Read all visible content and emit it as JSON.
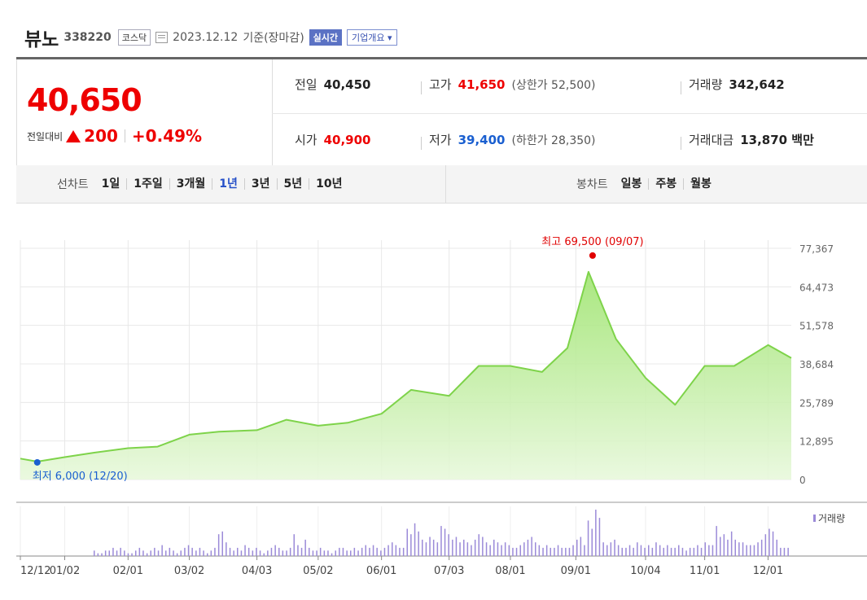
{
  "header": {
    "name": "뷰노",
    "code": "338220",
    "market": "코스닥",
    "date": "2023.12.12",
    "basis": "기준(장마감)",
    "realtime_button": "실시간",
    "overview_button": "기업개요 ▾"
  },
  "price": {
    "current": "40,650",
    "change_label": "전일대비",
    "change": "200",
    "change_pct": "+0.49%"
  },
  "stats": {
    "prev_label": "전일",
    "prev": "40,450",
    "high_label": "고가",
    "high": "41,650",
    "upper_limit": "(상한가 52,500)",
    "volume_label": "거래량",
    "volume": "342,642",
    "open_label": "시가",
    "open": "40,900",
    "low_label": "저가",
    "low": "39,400",
    "lower_limit": "(하한가 28,350)",
    "amount_label": "거래대금",
    "amount": "13,870 백만"
  },
  "line_tabs": {
    "caption": "선차트",
    "items": [
      "1일",
      "1주일",
      "3개월",
      "1년",
      "3년",
      "5년",
      "10년"
    ],
    "selected": "1년"
  },
  "candle_tabs": {
    "caption": "봉차트",
    "items": [
      "일봉",
      "주봉",
      "월봉"
    ]
  },
  "colors": {
    "up": "#e00000",
    "down": "#1a5fd0",
    "line": "#7ed34a",
    "volume": "#9b8ad8"
  },
  "chart_data": {
    "type": "area",
    "x_ticks": [
      "12/12",
      "01/02",
      "02/01",
      "03/02",
      "04/03",
      "05/02",
      "06/01",
      "07/03",
      "08/01",
      "09/01",
      "10/04",
      "11/01",
      "12/01"
    ],
    "y_ticks": [
      "77,367",
      "64,473",
      "51,578",
      "38,684",
      "25,789",
      "12,895",
      "0"
    ],
    "ylim": [
      0,
      77367
    ],
    "max_label": "최고 69,500 (09/07)",
    "min_label": "최저 6,000 (12/20)",
    "volume_legend": "거래량",
    "grid": true,
    "series": [
      {
        "dates": [
          "12/12",
          "12/20",
          "01/02",
          "01/16",
          "02/01",
          "02/15",
          "03/02",
          "03/16",
          "04/03",
          "04/17",
          "05/02",
          "05/16",
          "06/01",
          "06/15",
          "07/03",
          "07/17",
          "08/01",
          "08/16",
          "08/28",
          "09/07",
          "09/20",
          "10/04",
          "10/18",
          "11/01",
          "11/15",
          "12/01",
          "12/12"
        ],
        "values": [
          7000,
          6000,
          7500,
          9000,
          10500,
          11000,
          15000,
          16000,
          16500,
          20000,
          18000,
          19000,
          22000,
          30000,
          28000,
          38000,
          38000,
          36000,
          44000,
          69500,
          47000,
          34000,
          25000,
          38000,
          38000,
          45000,
          40650
        ]
      }
    ],
    "volume": [
      2,
      1,
      1,
      2,
      2,
      3,
      2,
      3,
      2,
      1,
      1,
      2,
      3,
      2,
      1,
      2,
      3,
      2,
      4,
      2,
      3,
      2,
      1,
      2,
      3,
      4,
      3,
      2,
      3,
      2,
      1,
      2,
      3,
      8,
      9,
      5,
      3,
      2,
      3,
      2,
      4,
      3,
      2,
      3,
      2,
      1,
      2,
      3,
      4,
      3,
      2,
      2,
      3,
      8,
      4,
      3,
      6,
      3,
      2,
      2,
      3,
      2,
      2,
      1,
      2,
      3,
      3,
      2,
      2,
      3,
      2,
      3,
      4,
      3,
      4,
      3,
      2,
      3,
      4,
      5,
      4,
      3,
      3,
      10,
      8,
      12,
      9,
      6,
      5,
      7,
      6,
      5,
      11,
      10,
      8,
      6,
      7,
      5,
      6,
      5,
      4,
      6,
      8,
      7,
      5,
      4,
      6,
      5,
      4,
      5,
      4,
      3,
      3,
      4,
      5,
      6,
      7,
      5,
      4,
      3,
      4,
      3,
      3,
      4,
      3,
      3,
      3,
      4,
      6,
      7,
      4,
      13,
      10,
      17,
      14,
      5,
      4,
      5,
      6,
      4,
      3,
      3,
      4,
      3,
      5,
      4,
      3,
      4,
      3,
      5,
      4,
      3,
      4,
      3,
      3,
      4,
      3,
      2,
      3,
      3,
      4,
      3,
      5,
      4,
      4,
      11,
      7,
      8,
      6,
      9,
      6,
      5,
      5,
      4,
      4,
      4,
      5,
      6,
      8,
      10,
      9,
      6,
      3,
      3,
      3
    ]
  }
}
